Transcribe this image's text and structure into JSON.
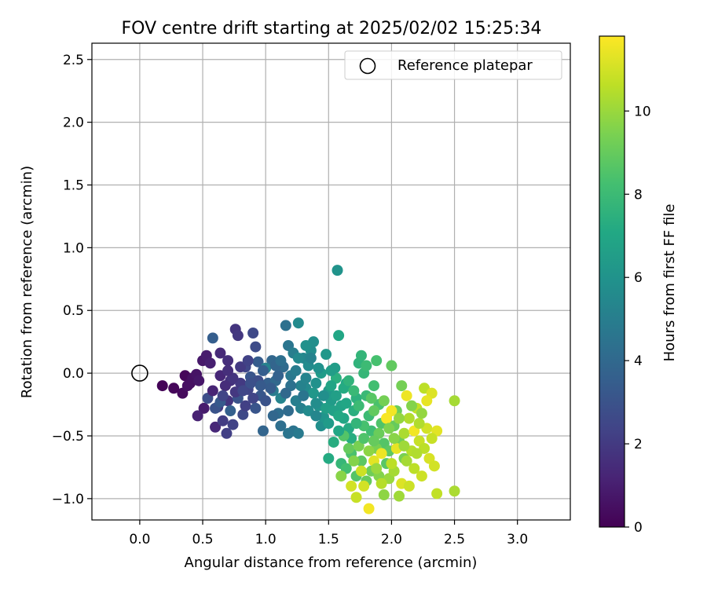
{
  "chart_data": {
    "type": "scatter",
    "title": "FOV centre drift starting at 2025/02/02 15:25:34",
    "xlabel": "Angular distance from reference (arcmin)",
    "ylabel": "Rotation from reference (arcmin)",
    "xlim": [
      -0.38,
      3.42
    ],
    "ylim": [
      -1.17,
      2.63
    ],
    "x_ticks": [
      0.0,
      0.5,
      1.0,
      1.5,
      2.0,
      2.5,
      3.0
    ],
    "x_tick_labels": [
      "0.0",
      "0.5",
      "1.0",
      "1.5",
      "2.0",
      "2.5",
      "3.0"
    ],
    "y_ticks": [
      -1.0,
      -0.5,
      0.0,
      0.5,
      1.0,
      1.5,
      2.0,
      2.5
    ],
    "y_tick_labels": [
      "−1.0",
      "−0.5",
      "0.0",
      "0.5",
      "1.0",
      "1.5",
      "2.0",
      "2.5"
    ],
    "grid": true,
    "legend": {
      "label": "Reference platepar",
      "placement": "top-right"
    },
    "reference_point": {
      "x": 0.0,
      "y": 0.0,
      "marker": "hollow-circle"
    },
    "colorbar": {
      "label": "Hours from first FF file",
      "colormap": "viridis",
      "range": [
        0,
        11.8
      ],
      "ticks": [
        0,
        2,
        4,
        6,
        8,
        10
      ],
      "tick_labels": [
        "0",
        "2",
        "4",
        "6",
        "8",
        "10"
      ]
    },
    "points": [
      {
        "x": 0.18,
        "y": -0.1,
        "c": 0.1
      },
      {
        "x": 0.27,
        "y": -0.12,
        "c": 0.2
      },
      {
        "x": 0.34,
        "y": -0.16,
        "c": 0.3
      },
      {
        "x": 0.36,
        "y": -0.02,
        "c": 0.2
      },
      {
        "x": 0.4,
        "y": -0.08,
        "c": 0.4
      },
      {
        "x": 0.42,
        "y": -0.04,
        "c": 0.5
      },
      {
        "x": 0.45,
        "y": -0.01,
        "c": 0.6
      },
      {
        "x": 0.38,
        "y": -0.1,
        "c": 0.5
      },
      {
        "x": 0.5,
        "y": 0.1,
        "c": 0.8
      },
      {
        "x": 0.53,
        "y": 0.14,
        "c": 0.9
      },
      {
        "x": 0.56,
        "y": 0.08,
        "c": 1.0
      },
      {
        "x": 0.47,
        "y": -0.06,
        "c": 0.7
      },
      {
        "x": 0.51,
        "y": -0.28,
        "c": 0.9
      },
      {
        "x": 0.46,
        "y": -0.34,
        "c": 1.1
      },
      {
        "x": 0.6,
        "y": -0.43,
        "c": 1.3
      },
      {
        "x": 0.64,
        "y": 0.16,
        "c": 1.4
      },
      {
        "x": 0.7,
        "y": 0.1,
        "c": 1.6
      },
      {
        "x": 0.76,
        "y": 0.35,
        "c": 1.8
      },
      {
        "x": 0.78,
        "y": 0.3,
        "c": 1.9
      },
      {
        "x": 0.72,
        "y": -0.06,
        "c": 1.7
      },
      {
        "x": 0.7,
        "y": -0.22,
        "c": 1.8
      },
      {
        "x": 0.62,
        "y": -0.27,
        "c": 2.0
      },
      {
        "x": 0.66,
        "y": -0.38,
        "c": 2.1
      },
      {
        "x": 0.69,
        "y": -0.48,
        "c": 2.2
      },
      {
        "x": 0.74,
        "y": -0.41,
        "c": 2.3
      },
      {
        "x": 0.8,
        "y": -0.08,
        "c": 2.0
      },
      {
        "x": 0.84,
        "y": 0.05,
        "c": 2.5
      },
      {
        "x": 0.86,
        "y": -0.13,
        "c": 2.4
      },
      {
        "x": 0.9,
        "y": 0.32,
        "c": 2.6
      },
      {
        "x": 0.92,
        "y": 0.21,
        "c": 2.7
      },
      {
        "x": 0.82,
        "y": -0.33,
        "c": 2.6
      },
      {
        "x": 0.54,
        "y": -0.2,
        "c": 2.8
      },
      {
        "x": 0.58,
        "y": 0.28,
        "c": 3.5
      },
      {
        "x": 0.6,
        "y": -0.28,
        "c": 3.0
      },
      {
        "x": 0.64,
        "y": -0.23,
        "c": 3.3
      },
      {
        "x": 0.72,
        "y": -0.3,
        "c": 3.6
      },
      {
        "x": 0.78,
        "y": -0.2,
        "c": 3.0
      },
      {
        "x": 0.88,
        "y": -0.03,
        "c": 3.1
      },
      {
        "x": 0.94,
        "y": 0.09,
        "c": 3.4
      },
      {
        "x": 0.96,
        "y": -0.18,
        "c": 3.2
      },
      {
        "x": 0.98,
        "y": -0.46,
        "c": 3.8
      },
      {
        "x": 1.02,
        "y": -0.08,
        "c": 3.6
      },
      {
        "x": 1.05,
        "y": 0.1,
        "c": 3.9
      },
      {
        "x": 1.08,
        "y": -0.06,
        "c": 4.0
      },
      {
        "x": 1.1,
        "y": -0.32,
        "c": 4.2
      },
      {
        "x": 1.12,
        "y": -0.42,
        "c": 4.3
      },
      {
        "x": 1.14,
        "y": 0.05,
        "c": 4.1
      },
      {
        "x": 1.16,
        "y": 0.38,
        "c": 4.4
      },
      {
        "x": 1.18,
        "y": 0.22,
        "c": 4.6
      },
      {
        "x": 1.2,
        "y": -0.02,
        "c": 4.7
      },
      {
        "x": 1.22,
        "y": -0.46,
        "c": 4.5
      },
      {
        "x": 1.26,
        "y": -0.48,
        "c": 4.8
      },
      {
        "x": 1.24,
        "y": -0.22,
        "c": 5.0
      },
      {
        "x": 1.28,
        "y": -0.28,
        "c": 5.1
      },
      {
        "x": 1.06,
        "y": -0.14,
        "c": 4.9
      },
      {
        "x": 1.0,
        "y": 0.04,
        "c": 5.2
      },
      {
        "x": 1.12,
        "y": -0.2,
        "c": 5.3
      },
      {
        "x": 1.3,
        "y": 0.12,
        "c": 5.4
      },
      {
        "x": 1.32,
        "y": -0.12,
        "c": 5.5
      },
      {
        "x": 1.34,
        "y": 0.06,
        "c": 5.6
      },
      {
        "x": 1.36,
        "y": 0.18,
        "c": 5.7
      },
      {
        "x": 1.38,
        "y": 0.25,
        "c": 5.8
      },
      {
        "x": 1.4,
        "y": -0.08,
        "c": 5.9
      },
      {
        "x": 1.42,
        "y": -0.26,
        "c": 6.0
      },
      {
        "x": 1.44,
        "y": -0.42,
        "c": 5.8
      },
      {
        "x": 1.46,
        "y": -0.35,
        "c": 6.1
      },
      {
        "x": 1.48,
        "y": 0.15,
        "c": 6.2
      },
      {
        "x": 1.5,
        "y": -0.14,
        "c": 6.3
      },
      {
        "x": 1.52,
        "y": -0.22,
        "c": 6.4
      },
      {
        "x": 1.55,
        "y": 0.04,
        "c": 6.5
      },
      {
        "x": 1.57,
        "y": 0.82,
        "c": 6.0
      },
      {
        "x": 1.58,
        "y": 0.3,
        "c": 7.0
      },
      {
        "x": 1.56,
        "y": -0.18,
        "c": 6.6
      },
      {
        "x": 1.6,
        "y": -0.26,
        "c": 6.8
      },
      {
        "x": 1.62,
        "y": -0.36,
        "c": 7.0
      },
      {
        "x": 1.64,
        "y": -0.08,
        "c": 7.1
      },
      {
        "x": 1.66,
        "y": -0.44,
        "c": 7.2
      },
      {
        "x": 1.68,
        "y": -0.52,
        "c": 7.3
      },
      {
        "x": 1.7,
        "y": -0.3,
        "c": 7.4
      },
      {
        "x": 1.72,
        "y": -0.2,
        "c": 7.5
      },
      {
        "x": 1.74,
        "y": 0.08,
        "c": 7.6
      },
      {
        "x": 1.76,
        "y": 0.14,
        "c": 7.7
      },
      {
        "x": 1.78,
        "y": 0.0,
        "c": 7.8
      },
      {
        "x": 1.8,
        "y": -0.18,
        "c": 7.9
      },
      {
        "x": 1.82,
        "y": -0.34,
        "c": 8.0
      },
      {
        "x": 1.84,
        "y": -0.46,
        "c": 8.1
      },
      {
        "x": 1.86,
        "y": -0.1,
        "c": 8.2
      },
      {
        "x": 1.88,
        "y": 0.1,
        "c": 8.3
      },
      {
        "x": 1.9,
        "y": -0.25,
        "c": 8.4
      },
      {
        "x": 1.92,
        "y": -0.4,
        "c": 8.5
      },
      {
        "x": 1.94,
        "y": -0.56,
        "c": 8.6
      },
      {
        "x": 1.96,
        "y": -0.72,
        "c": 8.7
      },
      {
        "x": 1.98,
        "y": -0.62,
        "c": 8.8
      },
      {
        "x": 2.0,
        "y": 0.06,
        "c": 8.9
      },
      {
        "x": 2.02,
        "y": -0.42,
        "c": 9.0
      },
      {
        "x": 2.04,
        "y": -0.3,
        "c": 9.1
      },
      {
        "x": 2.06,
        "y": -0.54,
        "c": 9.2
      },
      {
        "x": 2.08,
        "y": -0.1,
        "c": 9.3
      },
      {
        "x": 2.1,
        "y": -0.68,
        "c": 9.4
      },
      {
        "x": 1.5,
        "y": -0.68,
        "c": 7.2
      },
      {
        "x": 1.54,
        "y": -0.55,
        "c": 7.3
      },
      {
        "x": 1.6,
        "y": -0.72,
        "c": 7.8
      },
      {
        "x": 1.64,
        "y": -0.76,
        "c": 8.2
      },
      {
        "x": 1.68,
        "y": -0.64,
        "c": 8.4
      },
      {
        "x": 1.72,
        "y": -0.82,
        "c": 8.6
      },
      {
        "x": 1.76,
        "y": -0.7,
        "c": 8.8
      },
      {
        "x": 1.8,
        "y": -0.86,
        "c": 9.0
      },
      {
        "x": 1.84,
        "y": -0.78,
        "c": 9.2
      },
      {
        "x": 1.88,
        "y": -0.6,
        "c": 9.4
      },
      {
        "x": 1.9,
        "y": -0.82,
        "c": 9.6
      },
      {
        "x": 1.94,
        "y": -0.97,
        "c": 9.8
      },
      {
        "x": 1.98,
        "y": -0.84,
        "c": 10.0
      },
      {
        "x": 2.02,
        "y": -0.78,
        "c": 10.2
      },
      {
        "x": 2.06,
        "y": -0.98,
        "c": 10.1
      },
      {
        "x": 2.1,
        "y": -0.48,
        "c": 10.3
      },
      {
        "x": 2.14,
        "y": -0.36,
        "c": 10.4
      },
      {
        "x": 2.16,
        "y": -0.62,
        "c": 10.5
      },
      {
        "x": 2.18,
        "y": -0.76,
        "c": 10.6
      },
      {
        "x": 2.2,
        "y": -0.28,
        "c": 10.7
      },
      {
        "x": 2.22,
        "y": -0.54,
        "c": 10.8
      },
      {
        "x": 2.24,
        "y": -0.82,
        "c": 10.9
      },
      {
        "x": 2.26,
        "y": -0.12,
        "c": 10.6
      },
      {
        "x": 2.28,
        "y": -0.44,
        "c": 11.0
      },
      {
        "x": 2.3,
        "y": -0.68,
        "c": 11.1
      },
      {
        "x": 2.32,
        "y": -0.16,
        "c": 11.2
      },
      {
        "x": 2.34,
        "y": -0.74,
        "c": 11.0
      },
      {
        "x": 2.36,
        "y": -0.96,
        "c": 10.7
      },
      {
        "x": 2.36,
        "y": -0.46,
        "c": 11.3
      },
      {
        "x": 2.5,
        "y": -0.22,
        "c": 10.2
      },
      {
        "x": 2.5,
        "y": -0.94,
        "c": 10.3
      },
      {
        "x": 2.28,
        "y": -0.22,
        "c": 11.4
      },
      {
        "x": 2.12,
        "y": -0.18,
        "c": 11.5
      },
      {
        "x": 2.0,
        "y": -0.3,
        "c": 11.6
      },
      {
        "x": 1.96,
        "y": -0.36,
        "c": 11.7
      },
      {
        "x": 1.82,
        "y": -1.08,
        "c": 11.6
      },
      {
        "x": 1.72,
        "y": -0.99,
        "c": 10.8
      },
      {
        "x": 1.78,
        "y": -0.9,
        "c": 11.0
      },
      {
        "x": 1.86,
        "y": -0.7,
        "c": 11.3
      },
      {
        "x": 1.92,
        "y": -0.64,
        "c": 11.5
      },
      {
        "x": 2.04,
        "y": -0.6,
        "c": 11.4
      },
      {
        "x": 2.08,
        "y": -0.88,
        "c": 11.2
      },
      {
        "x": 2.14,
        "y": -0.9,
        "c": 10.9
      },
      {
        "x": 2.18,
        "y": -0.46,
        "c": 11.6
      },
      {
        "x": 2.22,
        "y": -0.4,
        "c": 10.4
      },
      {
        "x": 2.26,
        "y": -0.6,
        "c": 10.6
      },
      {
        "x": 2.32,
        "y": -0.52,
        "c": 10.8
      },
      {
        "x": 2.24,
        "y": -0.32,
        "c": 9.9
      },
      {
        "x": 2.16,
        "y": -0.26,
        "c": 9.6
      },
      {
        "x": 1.66,
        "y": -0.6,
        "c": 9.0
      },
      {
        "x": 1.62,
        "y": -0.5,
        "c": 8.6
      },
      {
        "x": 1.56,
        "y": -0.04,
        "c": 7.4
      },
      {
        "x": 1.52,
        "y": -0.1,
        "c": 6.9
      },
      {
        "x": 1.44,
        "y": 0.0,
        "c": 6.4
      },
      {
        "x": 1.38,
        "y": -0.16,
        "c": 6.2
      },
      {
        "x": 1.34,
        "y": -0.3,
        "c": 5.6
      },
      {
        "x": 1.28,
        "y": -0.1,
        "c": 5.2
      },
      {
        "x": 1.24,
        "y": 0.02,
        "c": 4.9
      },
      {
        "x": 1.2,
        "y": -0.1,
        "c": 4.4
      },
      {
        "x": 1.16,
        "y": -0.16,
        "c": 4.0
      },
      {
        "x": 1.1,
        "y": -0.02,
        "c": 3.7
      },
      {
        "x": 1.04,
        "y": -0.12,
        "c": 3.4
      },
      {
        "x": 1.0,
        "y": -0.22,
        "c": 3.0
      },
      {
        "x": 0.94,
        "y": -0.06,
        "c": 2.8
      },
      {
        "x": 0.9,
        "y": -0.2,
        "c": 2.4
      },
      {
        "x": 0.84,
        "y": -0.26,
        "c": 2.2
      },
      {
        "x": 0.8,
        "y": 0.05,
        "c": 2.0
      },
      {
        "x": 0.74,
        "y": -0.04,
        "c": 1.8
      },
      {
        "x": 0.68,
        "y": -0.1,
        "c": 1.5
      },
      {
        "x": 0.64,
        "y": -0.02,
        "c": 1.3
      },
      {
        "x": 0.58,
        "y": -0.14,
        "c": 1.2
      },
      {
        "x": 0.7,
        "y": 0.02,
        "c": 1.6
      },
      {
        "x": 0.76,
        "y": -0.15,
        "c": 1.9
      },
      {
        "x": 0.86,
        "y": 0.1,
        "c": 2.3
      },
      {
        "x": 0.96,
        "y": -0.1,
        "c": 3.3
      },
      {
        "x": 1.08,
        "y": 0.06,
        "c": 3.8
      },
      {
        "x": 1.18,
        "y": -0.3,
        "c": 4.1
      },
      {
        "x": 1.26,
        "y": 0.4,
        "c": 5.6
      },
      {
        "x": 1.3,
        "y": -0.18,
        "c": 4.6
      },
      {
        "x": 1.36,
        "y": 0.12,
        "c": 5.2
      },
      {
        "x": 1.4,
        "y": -0.34,
        "c": 5.4
      },
      {
        "x": 1.46,
        "y": -0.18,
        "c": 5.8
      },
      {
        "x": 1.48,
        "y": -0.28,
        "c": 6.6
      },
      {
        "x": 1.54,
        "y": -0.3,
        "c": 6.7
      },
      {
        "x": 1.58,
        "y": -0.46,
        "c": 7.0
      },
      {
        "x": 1.62,
        "y": -0.12,
        "c": 7.2
      },
      {
        "x": 1.66,
        "y": -0.06,
        "c": 7.6
      },
      {
        "x": 1.7,
        "y": -0.14,
        "c": 7.9
      },
      {
        "x": 1.74,
        "y": -0.26,
        "c": 8.0
      },
      {
        "x": 1.78,
        "y": -0.42,
        "c": 8.3
      },
      {
        "x": 1.8,
        "y": 0.06,
        "c": 8.0
      },
      {
        "x": 1.84,
        "y": -0.2,
        "c": 8.7
      },
      {
        "x": 1.86,
        "y": -0.3,
        "c": 8.9
      },
      {
        "x": 1.9,
        "y": -0.48,
        "c": 9.1
      },
      {
        "x": 1.94,
        "y": -0.22,
        "c": 9.3
      },
      {
        "x": 1.98,
        "y": -0.44,
        "c": 9.5
      },
      {
        "x": 2.02,
        "y": -0.52,
        "c": 9.7
      },
      {
        "x": 2.06,
        "y": -0.36,
        "c": 9.9
      },
      {
        "x": 2.1,
        "y": -0.58,
        "c": 10.1
      },
      {
        "x": 2.12,
        "y": -0.7,
        "c": 10.2
      },
      {
        "x": 2.2,
        "y": -0.64,
        "c": 10.4
      },
      {
        "x": 1.74,
        "y": -0.58,
        "c": 9.4
      },
      {
        "x": 1.7,
        "y": -0.7,
        "c": 9.6
      },
      {
        "x": 1.82,
        "y": -0.62,
        "c": 9.8
      },
      {
        "x": 1.88,
        "y": -0.76,
        "c": 10.0
      },
      {
        "x": 1.92,
        "y": -0.88,
        "c": 10.5
      },
      {
        "x": 2.0,
        "y": -0.72,
        "c": 10.6
      },
      {
        "x": 1.76,
        "y": -0.78,
        "c": 10.9
      },
      {
        "x": 1.68,
        "y": -0.9,
        "c": 11.0
      },
      {
        "x": 1.6,
        "y": -0.82,
        "c": 9.7
      },
      {
        "x": 1.18,
        "y": -0.48,
        "c": 4.6
      },
      {
        "x": 1.06,
        "y": -0.34,
        "c": 3.9
      },
      {
        "x": 0.92,
        "y": -0.28,
        "c": 3.1
      },
      {
        "x": 1.12,
        "y": 0.1,
        "c": 4.3
      },
      {
        "x": 1.22,
        "y": 0.16,
        "c": 5.0
      },
      {
        "x": 1.32,
        "y": -0.04,
        "c": 5.3
      },
      {
        "x": 1.42,
        "y": 0.04,
        "c": 5.9
      },
      {
        "x": 1.52,
        "y": 0.02,
        "c": 6.5
      },
      {
        "x": 1.64,
        "y": -0.24,
        "c": 7.0
      },
      {
        "x": 1.72,
        "y": -0.4,
        "c": 7.7
      },
      {
        "x": 1.78,
        "y": -0.52,
        "c": 8.5
      },
      {
        "x": 1.86,
        "y": -0.54,
        "c": 9.0
      },
      {
        "x": 1.58,
        "y": -0.34,
        "c": 7.1
      },
      {
        "x": 1.5,
        "y": -0.4,
        "c": 6.4
      },
      {
        "x": 1.4,
        "y": -0.24,
        "c": 5.7
      },
      {
        "x": 1.32,
        "y": 0.22,
        "c": 5.9
      },
      {
        "x": 1.26,
        "y": 0.12,
        "c": 5.5
      },
      {
        "x": 0.98,
        "y": 0.02,
        "c": 3.5
      },
      {
        "x": 0.88,
        "y": -0.08,
        "c": 2.9
      },
      {
        "x": 0.82,
        "y": -0.14,
        "c": 2.5
      },
      {
        "x": 0.66,
        "y": -0.18,
        "c": 2.4
      }
    ]
  }
}
